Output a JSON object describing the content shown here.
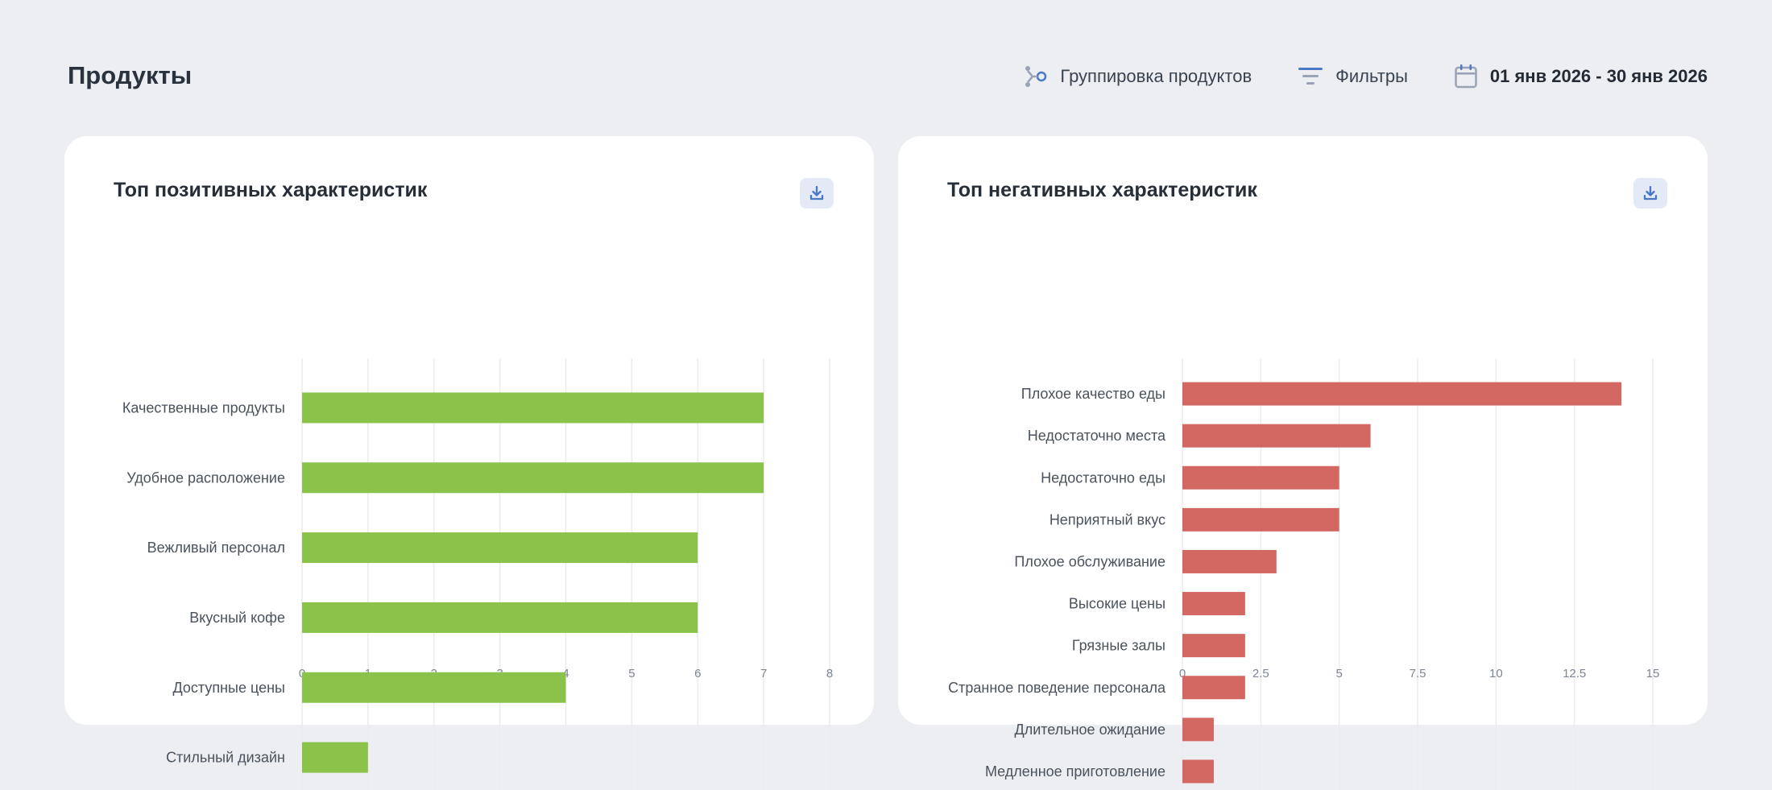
{
  "page": {
    "title": "Продукты",
    "toolbar": {
      "grouping_label": "Группировка продуктов",
      "filters_label": "Фильтры",
      "date_range": "01 янв 2026 - 30 янв 2026"
    }
  },
  "icons": {
    "grouping": "grouping-icon",
    "filters": "filter-icon",
    "calendar": "calendar-icon",
    "download": "download-icon"
  },
  "colors": {
    "positive": "#8bc34a",
    "negative": "#d36863",
    "accent": "#4a77c6"
  },
  "cards": {
    "positive": {
      "title": "Топ позитивных характеристик"
    },
    "negative": {
      "title": "Топ негативных характеристик"
    }
  },
  "chart_data": [
    {
      "type": "bar",
      "orientation": "horizontal",
      "categories": [
        "Качественные продукты",
        "Удобное расположение",
        "Вежливый персонал",
        "Вкусный кофе",
        "Доступные цены",
        "Стильный дизайн"
      ],
      "values": [
        7,
        7,
        6,
        6,
        4,
        1
      ],
      "title": "Топ позитивных характеристик",
      "xlim": [
        0,
        8
      ],
      "xticks": [
        "0",
        "1",
        "2",
        "3",
        "4",
        "5",
        "6",
        "7",
        "8"
      ],
      "grid": "vertical",
      "color": "#8bc34a"
    },
    {
      "type": "bar",
      "orientation": "horizontal",
      "categories": [
        "Плохое качество еды",
        "Недостаточно места",
        "Недостаточно еды",
        "Неприятный вкус",
        "Плохое обслуживание",
        "Высокие цены",
        "Грязные залы",
        "Странное поведение персонала",
        "Длительное ожидание",
        "Медленное приготовление"
      ],
      "values": [
        14,
        6,
        5,
        5,
        3,
        2,
        2,
        2,
        1,
        1
      ],
      "title": "Топ негативных характеристик",
      "xlim": [
        0,
        15
      ],
      "xticks": [
        "0",
        "2.5",
        "5",
        "7.5",
        "10",
        "12.5",
        "15"
      ],
      "grid": "vertical",
      "color": "#d36863"
    }
  ]
}
